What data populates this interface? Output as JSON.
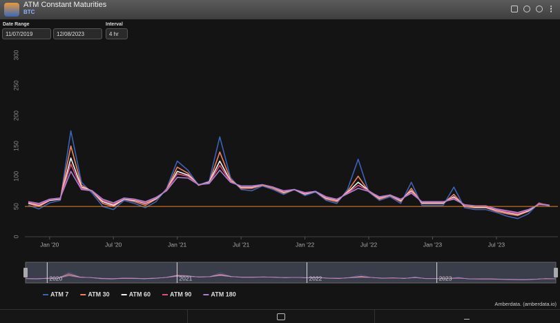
{
  "header": {
    "title": "ATM Constant Maturities",
    "subtitle": "BTC"
  },
  "controls": {
    "date_range_label": "Date Range",
    "start_date": "11/07/2019",
    "end_date": "12/08/2023",
    "interval_label": "Interval",
    "interval": "4 hr"
  },
  "credit": "Amberdata. (amberdata.io)",
  "chart_data": {
    "type": "line",
    "x": [
      "2019-11",
      "2019-12",
      "2020-01",
      "2020-02",
      "2020-03",
      "2020-04",
      "2020-05",
      "2020-06",
      "2020-07",
      "2020-08",
      "2020-09",
      "2020-10",
      "2020-11",
      "2020-12",
      "2021-01",
      "2021-02",
      "2021-03",
      "2021-04",
      "2021-05",
      "2021-06",
      "2021-07",
      "2021-08",
      "2021-09",
      "2021-10",
      "2021-11",
      "2021-12",
      "2022-01",
      "2022-02",
      "2022-03",
      "2022-04",
      "2022-05",
      "2022-06",
      "2022-07",
      "2022-08",
      "2022-09",
      "2022-10",
      "2022-11",
      "2022-12",
      "2023-01",
      "2023-02",
      "2023-03",
      "2023-04",
      "2023-05",
      "2023-06",
      "2023-07",
      "2023-08",
      "2023-09",
      "2023-10",
      "2023-11",
      "2023-12"
    ],
    "series": [
      {
        "name": "ATM 7",
        "color": "#3b63b8",
        "values": [
          52,
          46,
          56,
          60,
          175,
          90,
          72,
          50,
          45,
          60,
          55,
          48,
          58,
          80,
          125,
          110,
          85,
          92,
          165,
          98,
          78,
          76,
          84,
          78,
          70,
          78,
          68,
          74,
          60,
          55,
          78,
          128,
          74,
          60,
          66,
          55,
          90,
          52,
          52,
          52,
          82,
          48,
          45,
          45,
          40,
          34,
          30,
          38,
          56,
          50
        ]
      },
      {
        "name": "ATM 30",
        "color": "#f0855f",
        "values": [
          55,
          50,
          60,
          62,
          150,
          85,
          75,
          55,
          50,
          62,
          58,
          52,
          62,
          78,
          115,
          105,
          85,
          90,
          140,
          95,
          80,
          80,
          85,
          80,
          72,
          78,
          70,
          75,
          62,
          58,
          75,
          100,
          75,
          62,
          68,
          58,
          80,
          55,
          55,
          55,
          70,
          50,
          48,
          48,
          42,
          38,
          35,
          42,
          55,
          52
        ]
      },
      {
        "name": "ATM 60",
        "color": "#f4f4f4",
        "values": [
          56,
          52,
          60,
          62,
          130,
          82,
          76,
          58,
          52,
          62,
          60,
          55,
          63,
          77,
          108,
          102,
          86,
          90,
          125,
          92,
          82,
          82,
          86,
          82,
          74,
          78,
          71,
          75,
          64,
          60,
          73,
          90,
          76,
          64,
          69,
          60,
          76,
          56,
          56,
          56,
          66,
          51,
          49,
          49,
          44,
          40,
          37,
          43,
          54,
          52
        ]
      },
      {
        "name": "ATM 90",
        "color": "#e2507c",
        "values": [
          57,
          53,
          61,
          63,
          120,
          80,
          76,
          60,
          54,
          63,
          61,
          56,
          64,
          77,
          104,
          100,
          86,
          89,
          118,
          91,
          83,
          83,
          86,
          82,
          75,
          78,
          72,
          75,
          65,
          61,
          72,
          85,
          76,
          65,
          69,
          61,
          74,
          57,
          57,
          57,
          64,
          52,
          50,
          50,
          45,
          41,
          38,
          44,
          54,
          52
        ]
      },
      {
        "name": "ATM 180",
        "color": "#a982d6",
        "values": [
          58,
          55,
          62,
          64,
          108,
          78,
          76,
          62,
          56,
          64,
          62,
          58,
          65,
          76,
          98,
          97,
          86,
          88,
          110,
          90,
          84,
          84,
          86,
          82,
          76,
          78,
          73,
          75,
          66,
          62,
          71,
          80,
          75,
          66,
          69,
          62,
          72,
          58,
          58,
          58,
          62,
          53,
          51,
          51,
          46,
          43,
          40,
          45,
          53,
          52
        ]
      }
    ],
    "ylim": [
      0,
      300
    ],
    "yticks": [
      0,
      50,
      100,
      150,
      200,
      250,
      300
    ],
    "xticks": [
      {
        "value": "2020-01",
        "label": "Jan '20"
      },
      {
        "value": "2020-07",
        "label": "Jul '20"
      },
      {
        "value": "2021-01",
        "label": "Jan '21"
      },
      {
        "value": "2021-07",
        "label": "Jul '21"
      },
      {
        "value": "2022-01",
        "label": "Jan '22"
      },
      {
        "value": "2022-07",
        "label": "Jul '22"
      },
      {
        "value": "2023-01",
        "label": "Jan '23"
      },
      {
        "value": "2023-07",
        "label": "Jul '23"
      }
    ],
    "reference_line": {
      "value": 50,
      "color": "#e8842c"
    },
    "grid": false,
    "legend": "bottom-left",
    "navigator_ticks": [
      {
        "value": "2020-01",
        "label": "2020"
      },
      {
        "value": "2021-01",
        "label": "2021"
      },
      {
        "value": "2022-01",
        "label": "2022"
      },
      {
        "value": "2023-01",
        "label": "2023"
      }
    ]
  }
}
